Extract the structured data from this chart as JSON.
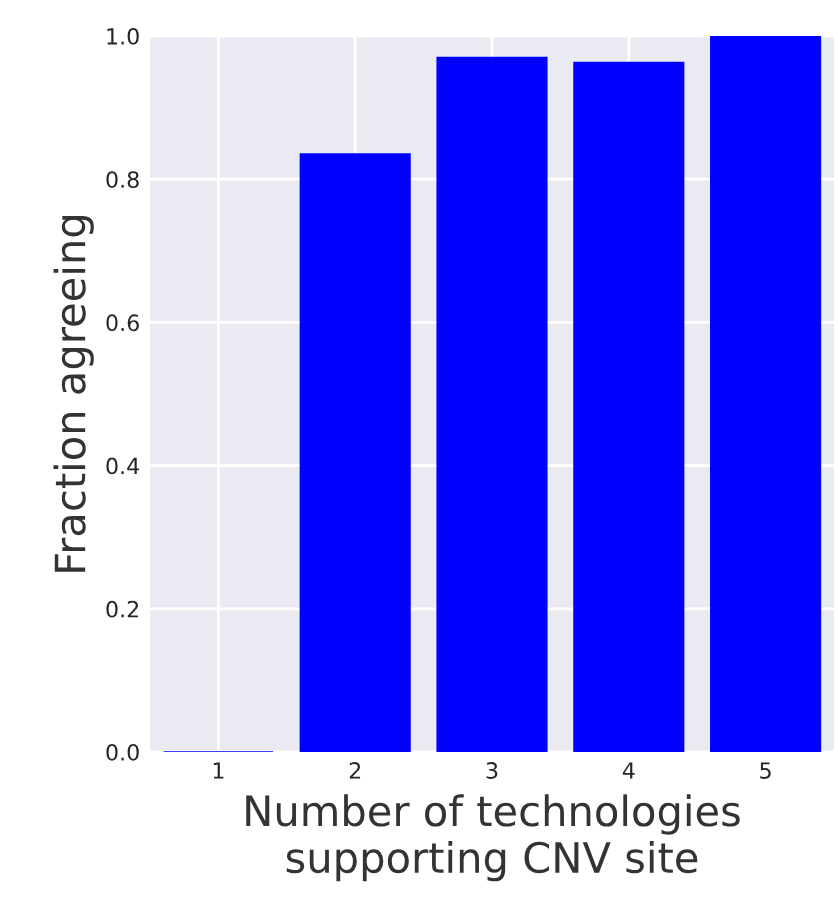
{
  "chart_data": {
    "type": "bar",
    "xlabel": "Number of technologies\nsupporting CNV site",
    "ylabel": "Fraction agreeing",
    "categories": [
      "1",
      "2",
      "3",
      "4",
      "5"
    ],
    "values": [
      0,
      0.835,
      0.97,
      0.963,
      1.0
    ],
    "color": "#0000ff",
    "ylim": [
      0,
      1
    ],
    "yticks": [
      {
        "value": 0,
        "label": "0.0"
      },
      {
        "value": 0.2,
        "label": "0.2"
      },
      {
        "value": 0.4,
        "label": "0.4"
      },
      {
        "value": 0.6,
        "label": "0.6"
      },
      {
        "value": 0.8,
        "label": "0.8"
      },
      {
        "value": 1,
        "label": "1.0"
      }
    ],
    "grid": true
  }
}
